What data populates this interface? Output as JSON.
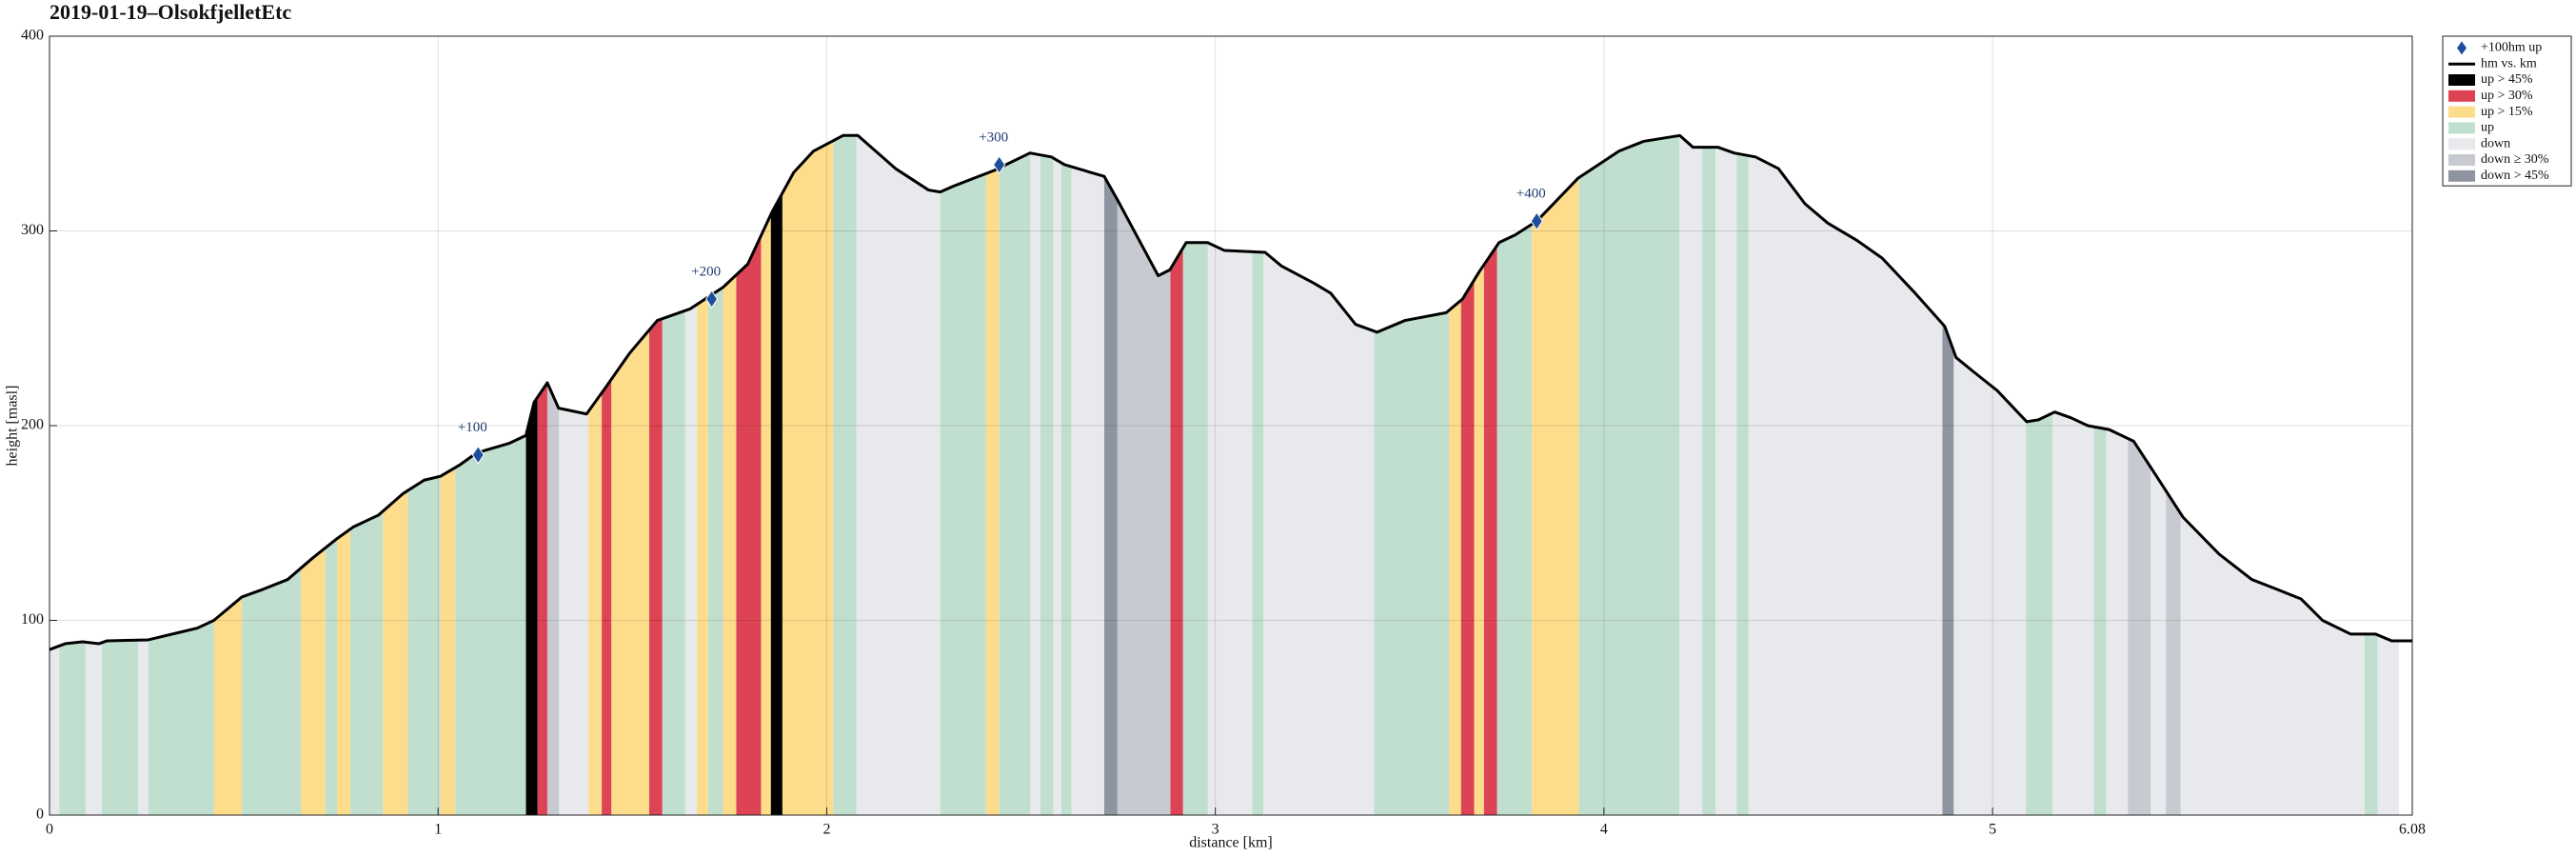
{
  "chart_data": {
    "type": "area-profile",
    "title": "2019-01-19–OlsokfjelletEtc",
    "x_label": "distance [km]",
    "y_label": "height [masl]",
    "xlim": [
      0,
      6.08
    ],
    "ylim": [
      0,
      400
    ],
    "xticks": [
      0,
      1,
      2,
      3,
      4,
      5,
      6.08
    ],
    "yticks": [
      0,
      100,
      200,
      300,
      400
    ],
    "grid": true,
    "legend": "outside-upper-right",
    "markers": {
      "name": "+100hm up",
      "color": "#1f4e9c",
      "x": [
        1.103,
        1.704,
        2.444,
        3.827
      ],
      "values": [
        185,
        265,
        334,
        305
      ],
      "labels": [
        "+100",
        "+200",
        "+300",
        "+400"
      ]
    },
    "series": [
      {
        "name": "hm vs. km",
        "color": "#000000",
        "x": [
          0,
          0.04,
          0.085,
          0.127,
          0.148,
          0.254,
          0.338,
          0.38,
          0.423,
          0.495,
          0.55,
          0.613,
          0.677,
          0.74,
          0.782,
          0.846,
          0.909,
          0.964,
          1.006,
          1.057,
          1.099,
          1.184,
          1.226,
          1.247,
          1.281,
          1.31,
          1.382,
          1.429,
          1.492,
          1.564,
          1.649,
          1.733,
          1.797,
          1.86,
          1.915,
          1.966,
          2.042,
          2.08,
          2.177,
          2.262,
          2.292,
          2.326,
          2.43,
          2.523,
          2.578,
          2.612,
          2.663,
          2.714,
          2.748,
          2.853,
          2.883,
          2.925,
          2.98,
          3.023,
          3.128,
          3.17,
          3.255,
          3.297,
          3.361,
          3.416,
          3.488,
          3.594,
          3.636,
          3.679,
          3.73,
          3.772,
          3.827,
          3.933,
          4.039,
          4.102,
          4.195,
          4.229,
          4.293,
          4.335,
          4.39,
          4.449,
          4.517,
          4.576,
          4.652,
          4.716,
          4.801,
          4.877,
          4.906,
          4.949,
          5.012,
          5.088,
          5.118,
          5.16,
          5.202,
          5.245,
          5.3,
          5.363,
          5.422,
          5.49,
          5.583,
          5.667,
          5.731,
          5.794,
          5.849,
          5.921,
          5.985,
          6.027,
          6.08
        ],
        "values": [
          85,
          88,
          89,
          88,
          89.5,
          90,
          94,
          96,
          100,
          112,
          116,
          121,
          132,
          142,
          148,
          154,
          165,
          172,
          174,
          180,
          186,
          191,
          195,
          212,
          222,
          209,
          206,
          219,
          237,
          254,
          260,
          271,
          283,
          310,
          330,
          341,
          349,
          349,
          332,
          321,
          320,
          323,
          331,
          340,
          338,
          334,
          331,
          328,
          316,
          277,
          280,
          294,
          294,
          290,
          289,
          282,
          273,
          268,
          252,
          248,
          254,
          258,
          265,
          279,
          294,
          298,
          305,
          327,
          341,
          346,
          349,
          343,
          343,
          340,
          338,
          332,
          314,
          304,
          295,
          286,
          268,
          251,
          235,
          228,
          218,
          202,
          203,
          207,
          204,
          200,
          198,
          192,
          174,
          153,
          134,
          121,
          116,
          111,
          100,
          93,
          93,
          89.5,
          89.5
        ]
      }
    ],
    "bands": [
      {
        "name": "up > 45%",
        "color": "#000000",
        "x0": [
          1.226,
          1.856
        ],
        "x1": [
          1.256,
          1.886
        ]
      },
      {
        "name": "up > 30%",
        "color": "#dc4354",
        "x0": [
          1.256,
          1.421,
          1.543,
          1.767,
          2.884,
          3.632,
          3.691
        ],
        "x1": [
          1.281,
          1.446,
          1.577,
          1.831,
          2.917,
          3.666,
          3.725
        ]
      },
      {
        "name": "up > 15%",
        "color": "#fddc8c",
        "x0": [
          0.423,
          0.647,
          0.74,
          0.858,
          1.006,
          1.387,
          1.446,
          1.666,
          1.733,
          1.831,
          1.886,
          2.41,
          3.602,
          3.666,
          3.814
        ],
        "x1": [
          0.495,
          0.71,
          0.774,
          0.922,
          1.044,
          1.421,
          1.543,
          1.695,
          1.767,
          1.856,
          2.017,
          2.444,
          3.632,
          3.691,
          3.936
        ]
      },
      {
        "name": "up",
        "color": "#c1dfcf",
        "x0": [
          0.025,
          0.135,
          0.254,
          0.495,
          0.71,
          0.774,
          0.922,
          1.044,
          1.577,
          1.695,
          2.017,
          2.292,
          2.444,
          2.55,
          2.604,
          2.917,
          3.095,
          3.408,
          3.725,
          3.936,
          4.253,
          4.342,
          5.086,
          5.26,
          5.957
        ],
        "x1": [
          0.093,
          0.228,
          0.423,
          0.647,
          0.74,
          0.858,
          1.006,
          1.226,
          1.636,
          1.733,
          2.076,
          2.41,
          2.524,
          2.583,
          2.63,
          2.981,
          3.124,
          3.602,
          3.814,
          4.194,
          4.287,
          4.372,
          5.154,
          5.293,
          5.991
        ]
      },
      {
        "name": "down",
        "color": "#e8e9ec",
        "x0": [
          0,
          0.093,
          0.228,
          1.311,
          1.636,
          2.076,
          2.524,
          2.583,
          2.63,
          2.981,
          3.124,
          4.194,
          4.287,
          4.372,
          4.9,
          5.154,
          5.293,
          5.407,
          5.484,
          5.991
        ],
        "x1": [
          0.025,
          0.135,
          0.254,
          1.387,
          1.666,
          2.292,
          2.55,
          2.604,
          2.714,
          3.095,
          3.408,
          4.253,
          4.342,
          4.871,
          5.086,
          5.26,
          5.348,
          5.446,
          5.957,
          6.046
        ]
      },
      {
        "name": "down ≥ 30%",
        "color": "#c8cad1",
        "x0": [
          1.281,
          2.748,
          5.348,
          5.446
        ],
        "x1": [
          1.311,
          2.884,
          5.407,
          5.484
        ]
      },
      {
        "name": "down > 45%",
        "color": "#8e95a1",
        "x0": [
          2.714,
          4.871
        ],
        "x1": [
          2.748,
          4.9
        ]
      }
    ]
  }
}
